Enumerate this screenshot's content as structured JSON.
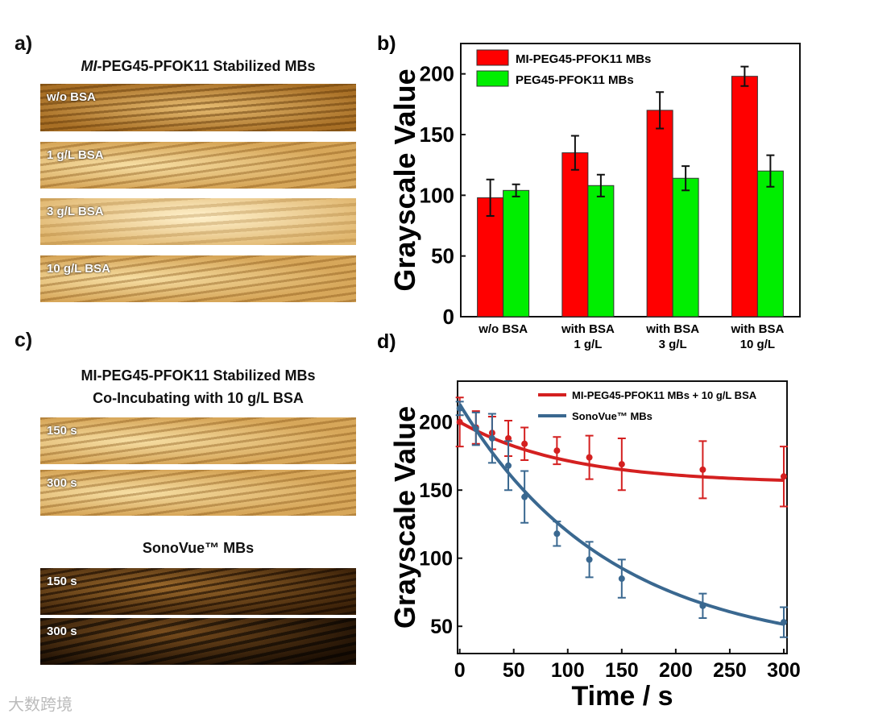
{
  "panel_a": {
    "label": "a)",
    "title_prefix": "MI",
    "title_rest": "-PEG45-PFOK11 Stabilized MBs",
    "images": [
      "w/o BSA",
      "1 g/L BSA",
      "3 g/L BSA",
      "10 g/L BSA"
    ]
  },
  "panel_c": {
    "label": "c)",
    "title_line1": "MI-PEG45-PFOK11 Stabilized MBs",
    "title_line2": "Co-Incubating with 10 g/L BSA",
    "images_top": [
      "150 s",
      "300 s"
    ],
    "sono_title": "SonoVue™ MBs",
    "images_bottom": [
      "150 s",
      "300 s"
    ]
  },
  "watermark": "大数跨境",
  "chart_data": [
    {
      "panel": "b)",
      "type": "bar",
      "ylabel": "Grayscale Value",
      "ylim": [
        0,
        225
      ],
      "yticks": [
        0,
        50,
        100,
        150,
        200
      ],
      "categories": [
        [
          "w/o BSA",
          ""
        ],
        [
          "with BSA",
          "1 g/L"
        ],
        [
          "with BSA",
          "3 g/L"
        ],
        [
          "with BSA",
          "10 g/L"
        ]
      ],
      "legend_position": "top-left",
      "series": [
        {
          "name": "MI-PEG45-PFOK11 MBs",
          "color": "#ff0000",
          "values": [
            98,
            135,
            170,
            198
          ],
          "errors": [
            15,
            14,
            15,
            8
          ]
        },
        {
          "name": "PEG45-PFOK11 MBs",
          "color": "#00ee00",
          "values": [
            104,
            108,
            114,
            120
          ],
          "errors": [
            5,
            9,
            10,
            13
          ]
        }
      ]
    },
    {
      "panel": "d)",
      "type": "line",
      "xlabel": "Time / s",
      "ylabel": "Grayscale Value",
      "xlim": [
        -2,
        303
      ],
      "ylim": [
        30,
        230
      ],
      "xticks": [
        0,
        50,
        100,
        150,
        200,
        250,
        300
      ],
      "yticks": [
        50,
        100,
        150,
        200
      ],
      "legend_position": "top-right",
      "x": [
        0,
        15,
        30,
        45,
        60,
        90,
        120,
        150,
        225,
        300
      ],
      "series": [
        {
          "name": "MI-PEG45-PFOK11 MBs + 10 g/L BSA",
          "color": "#d42020",
          "values": [
            200,
            196,
            192,
            188,
            184,
            179,
            174,
            169,
            165,
            160
          ],
          "errors": [
            18,
            12,
            12,
            13,
            12,
            10,
            16,
            19,
            21,
            22
          ],
          "fit": [
            155,
            45,
            100
          ]
        },
        {
          "name": "SonoVue™ MBs",
          "color": "#3a6890",
          "values": [
            210,
            195,
            188,
            168,
            145,
            118,
            99,
            85,
            65,
            53
          ],
          "errors": [
            5,
            12,
            18,
            18,
            19,
            9,
            13,
            14,
            9,
            11
          ],
          "fit": [
            30,
            183,
            140
          ]
        }
      ]
    }
  ]
}
